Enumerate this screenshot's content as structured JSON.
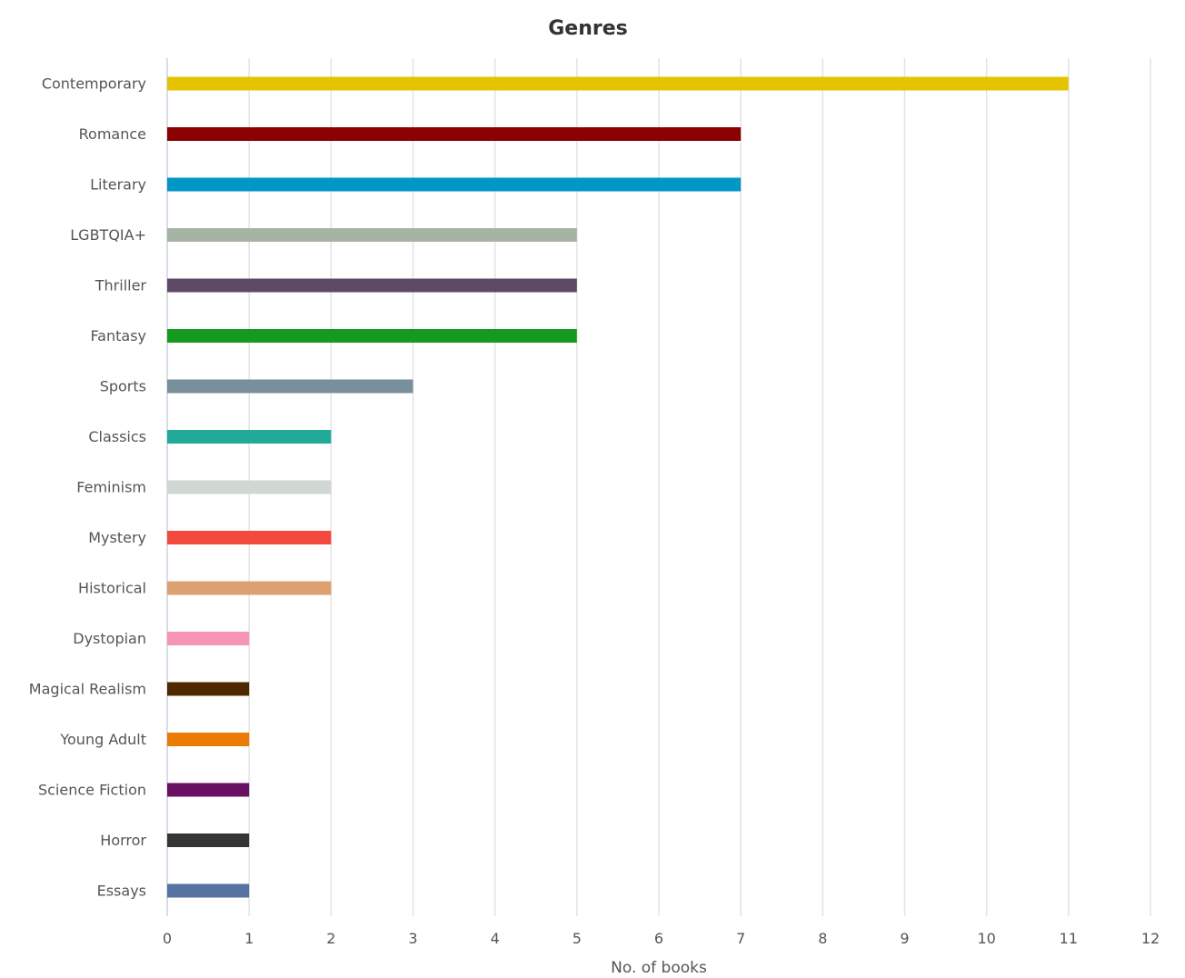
{
  "chart_data": {
    "type": "bar",
    "orientation": "horizontal",
    "title": "Genres",
    "xlabel": "No. of books",
    "ylabel": "",
    "xlim": [
      0,
      12
    ],
    "xticks": [
      "0",
      "1",
      "2",
      "3",
      "4",
      "5",
      "6",
      "7",
      "8",
      "9",
      "10",
      "11",
      "12"
    ],
    "grid": true,
    "legend": "none",
    "categories": [
      "Contemporary",
      "Romance",
      "Literary",
      "LGBTQIA+",
      "Thriller",
      "Fantasy",
      "Sports",
      "Classics",
      "Feminism",
      "Mystery",
      "Historical",
      "Dystopian",
      "Magical Realism",
      "Young Adult",
      "Science Fiction",
      "Horror",
      "Essays"
    ],
    "values": [
      11,
      7,
      7,
      5,
      5,
      5,
      3,
      2,
      2,
      2,
      2,
      1,
      1,
      1,
      1,
      1,
      1
    ],
    "colors": [
      "#e6c300",
      "#8b0000",
      "#0096c7",
      "#a7b4a4",
      "#5e4a66",
      "#16991f",
      "#7a8f9c",
      "#22aa99",
      "#d1d8d4",
      "#f44a3d",
      "#dda071",
      "#f694b5",
      "#4f2800",
      "#ec7b04",
      "#6a1063",
      "#353535",
      "#5673a1"
    ]
  }
}
